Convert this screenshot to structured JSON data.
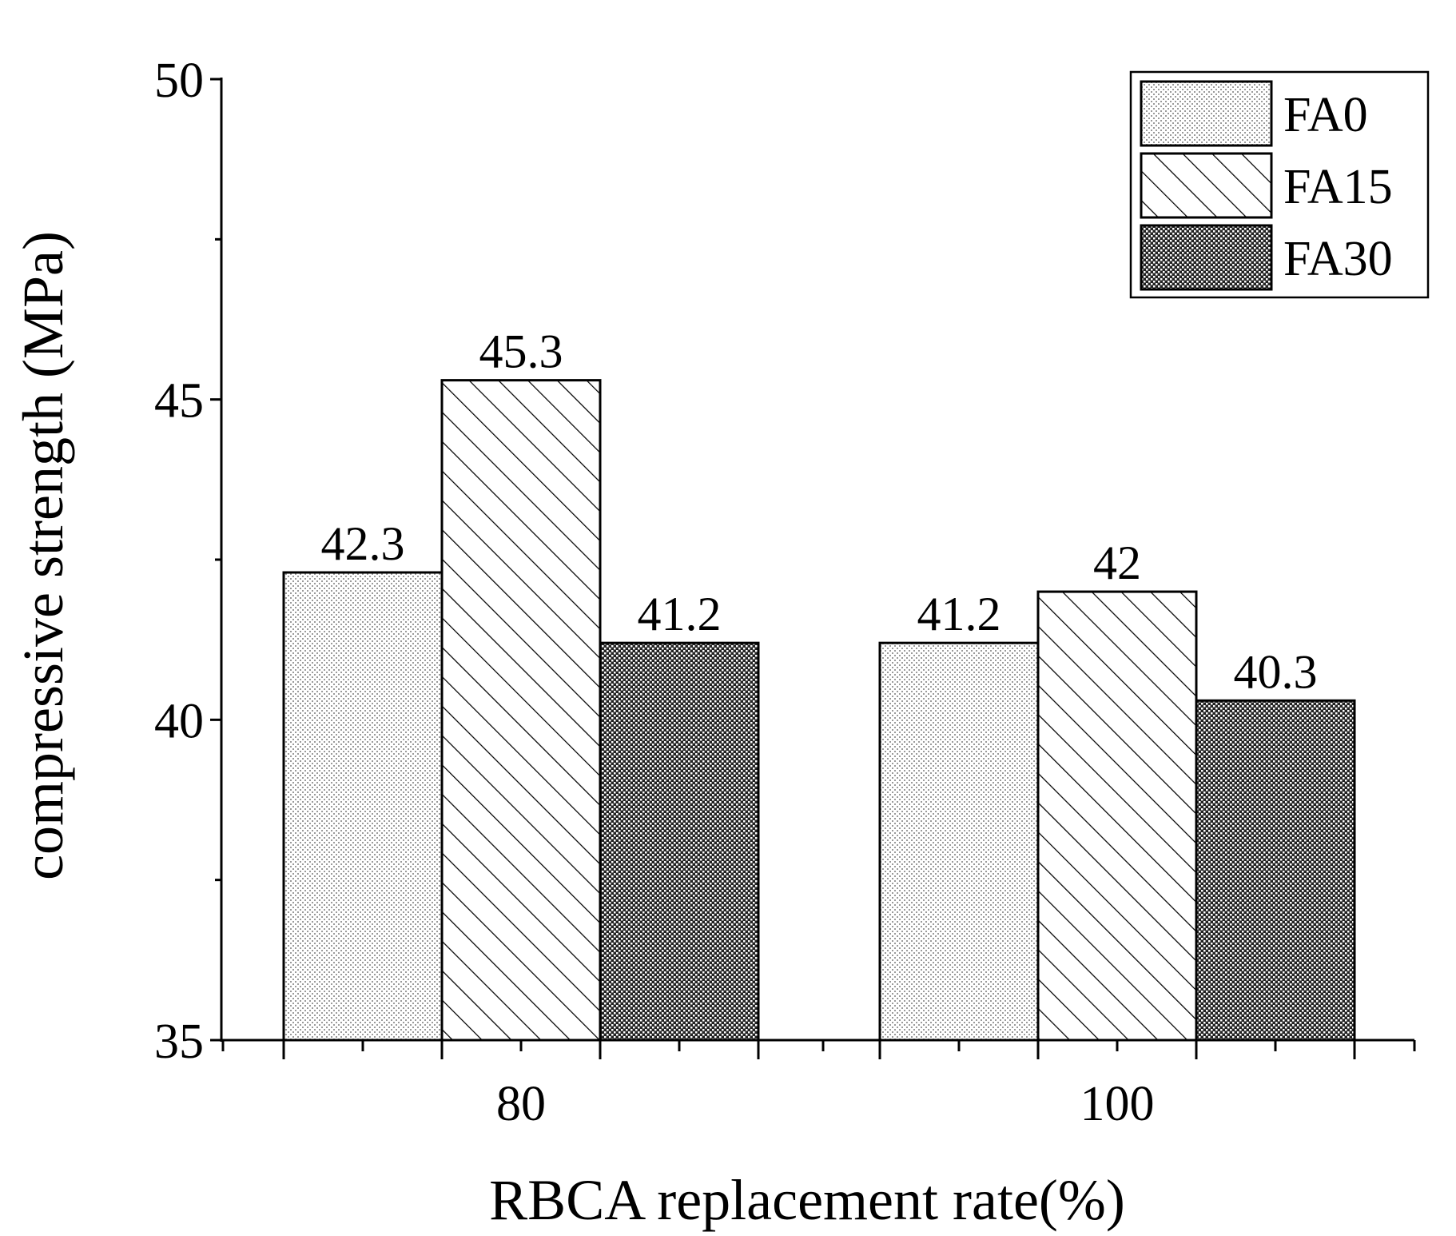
{
  "chart_data": {
    "type": "bar",
    "categories": [
      "80",
      "100"
    ],
    "series": [
      {
        "name": "FA0",
        "values": [
          42.3,
          41.2
        ],
        "labels": [
          "42.3",
          "41.2"
        ],
        "pattern": "dots-light"
      },
      {
        "name": "FA15",
        "values": [
          45.3,
          42
        ],
        "labels": [
          "45.3",
          "42"
        ],
        "pattern": "hatch-diagonal"
      },
      {
        "name": "FA30",
        "values": [
          41.2,
          40.3
        ],
        "labels": [
          "41.2",
          "40.3"
        ],
        "pattern": "dots-dark"
      }
    ],
    "title": "",
    "xlabel": "RBCA replacement rate(%)",
    "ylabel": "compressive strength (MPa)",
    "ylim": [
      35,
      50
    ],
    "yticks": [
      "35",
      "40",
      "45",
      "50"
    ],
    "legend_position": "top-right",
    "grid": false,
    "colors": {
      "bar_stroke": "#000000",
      "background": "#ffffff"
    }
  }
}
